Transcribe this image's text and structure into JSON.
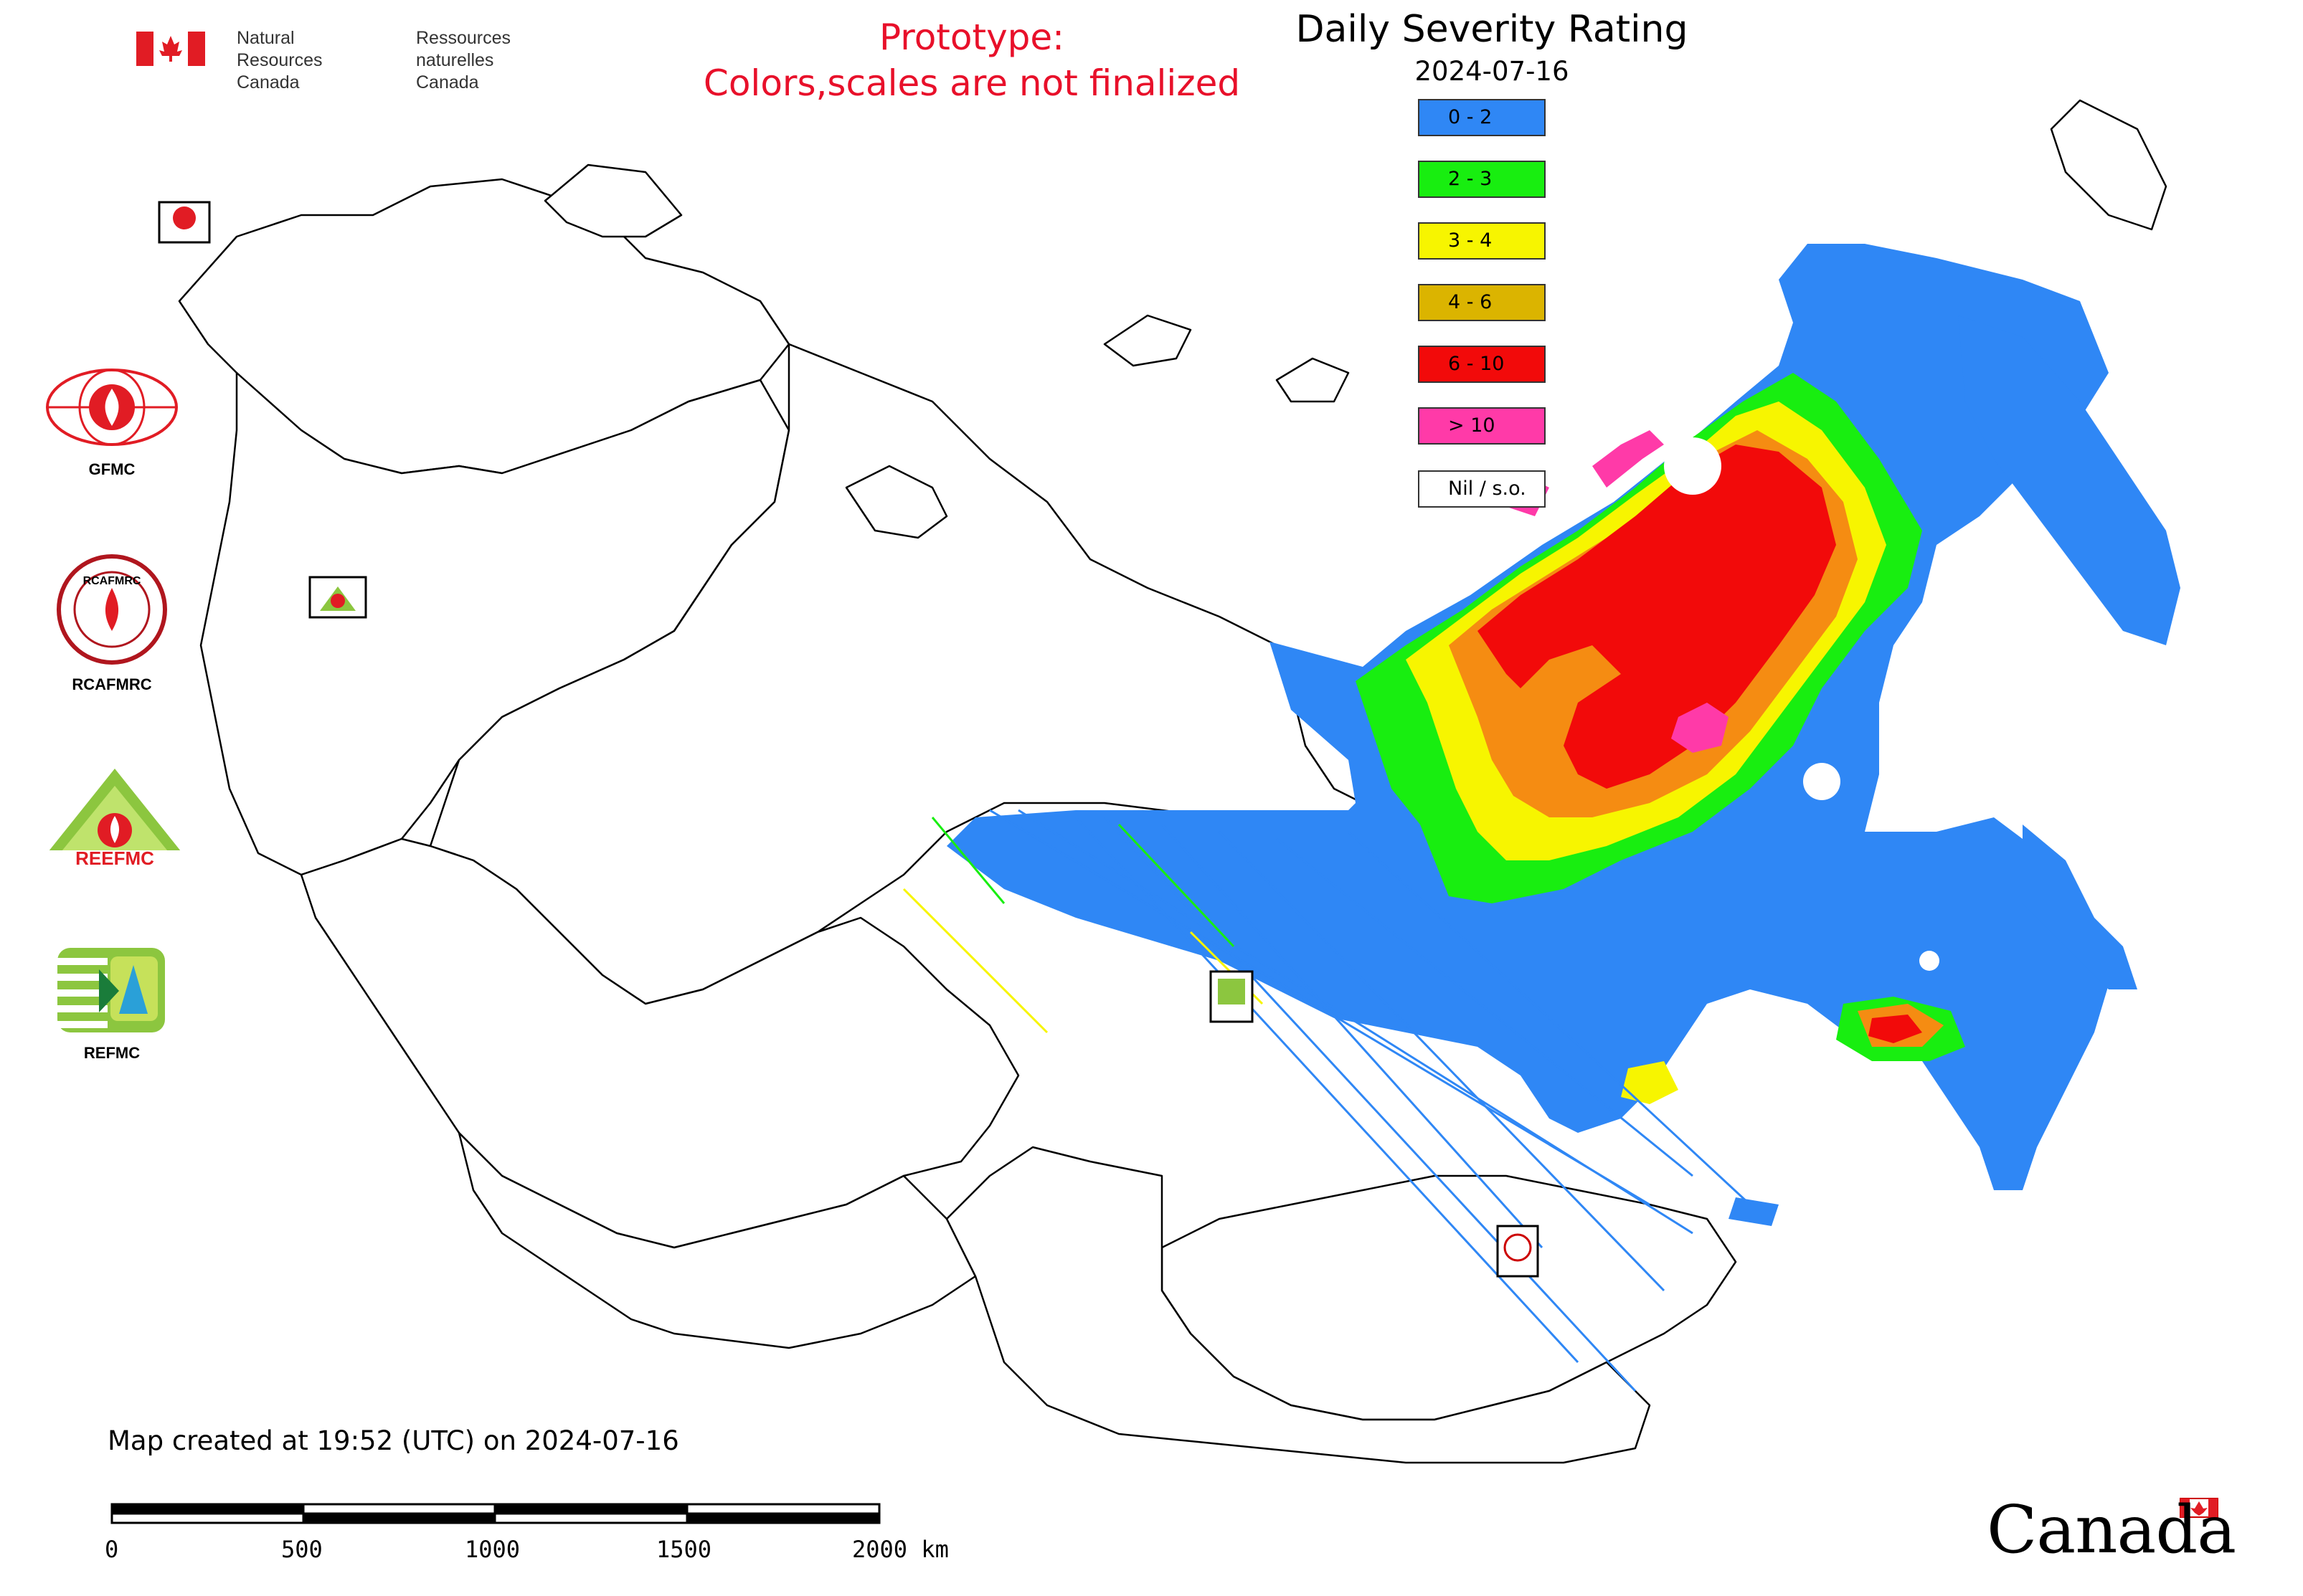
{
  "header": {
    "dept_en_line1": "Natural Resources",
    "dept_en_line2": "Canada",
    "dept_fr_line1": "Ressources naturelles",
    "dept_fr_line2": "Canada"
  },
  "prototype_notice": {
    "line1": "Prototype:",
    "line2": "Colors,scales are not finalized",
    "color": "#e8102a"
  },
  "map": {
    "title": "Daily Severity Rating",
    "date": "2024-07-16",
    "legend": [
      {
        "label": "0 - 2",
        "color": "#2f87f5"
      },
      {
        "label": "2 - 3",
        "color": "#18ee10"
      },
      {
        "label": "3 - 4",
        "color": "#f7f500"
      },
      {
        "label": "4 - 6",
        "color": "#dbb400"
      },
      {
        "label": "6 - 10",
        "color": "#f20a0a"
      },
      {
        "label": "> 10",
        "color": "#ff3aa8"
      },
      {
        "label": "Nil / s.o.",
        "color": "#ffffff"
      }
    ],
    "created_text": "Map created at 19:52 (UTC) on 2024-07-16",
    "scale_bar": {
      "unit": "km",
      "ticks": [
        "0",
        "500",
        "1000",
        "1500",
        "2000 km"
      ]
    }
  },
  "logos": [
    {
      "name": "GFMC",
      "label": "GFMC",
      "ring_text": "GFMC"
    },
    {
      "name": "RCAFMRC",
      "label": "RCAFMRC",
      "ring_text": "RCAFMRC"
    },
    {
      "name": "REEFMC",
      "label": "REEFMC",
      "ring_text": "REEFMC"
    },
    {
      "name": "REFMC",
      "label": "REFMC",
      "ring_text": "REFMC"
    }
  ],
  "map_markers": [
    {
      "label": "GFMC"
    },
    {
      "label": "REEFMC"
    },
    {
      "label": "REFMC"
    },
    {
      "label": "RCAFMRC"
    }
  ],
  "footer": {
    "wordmark": "Canada"
  }
}
